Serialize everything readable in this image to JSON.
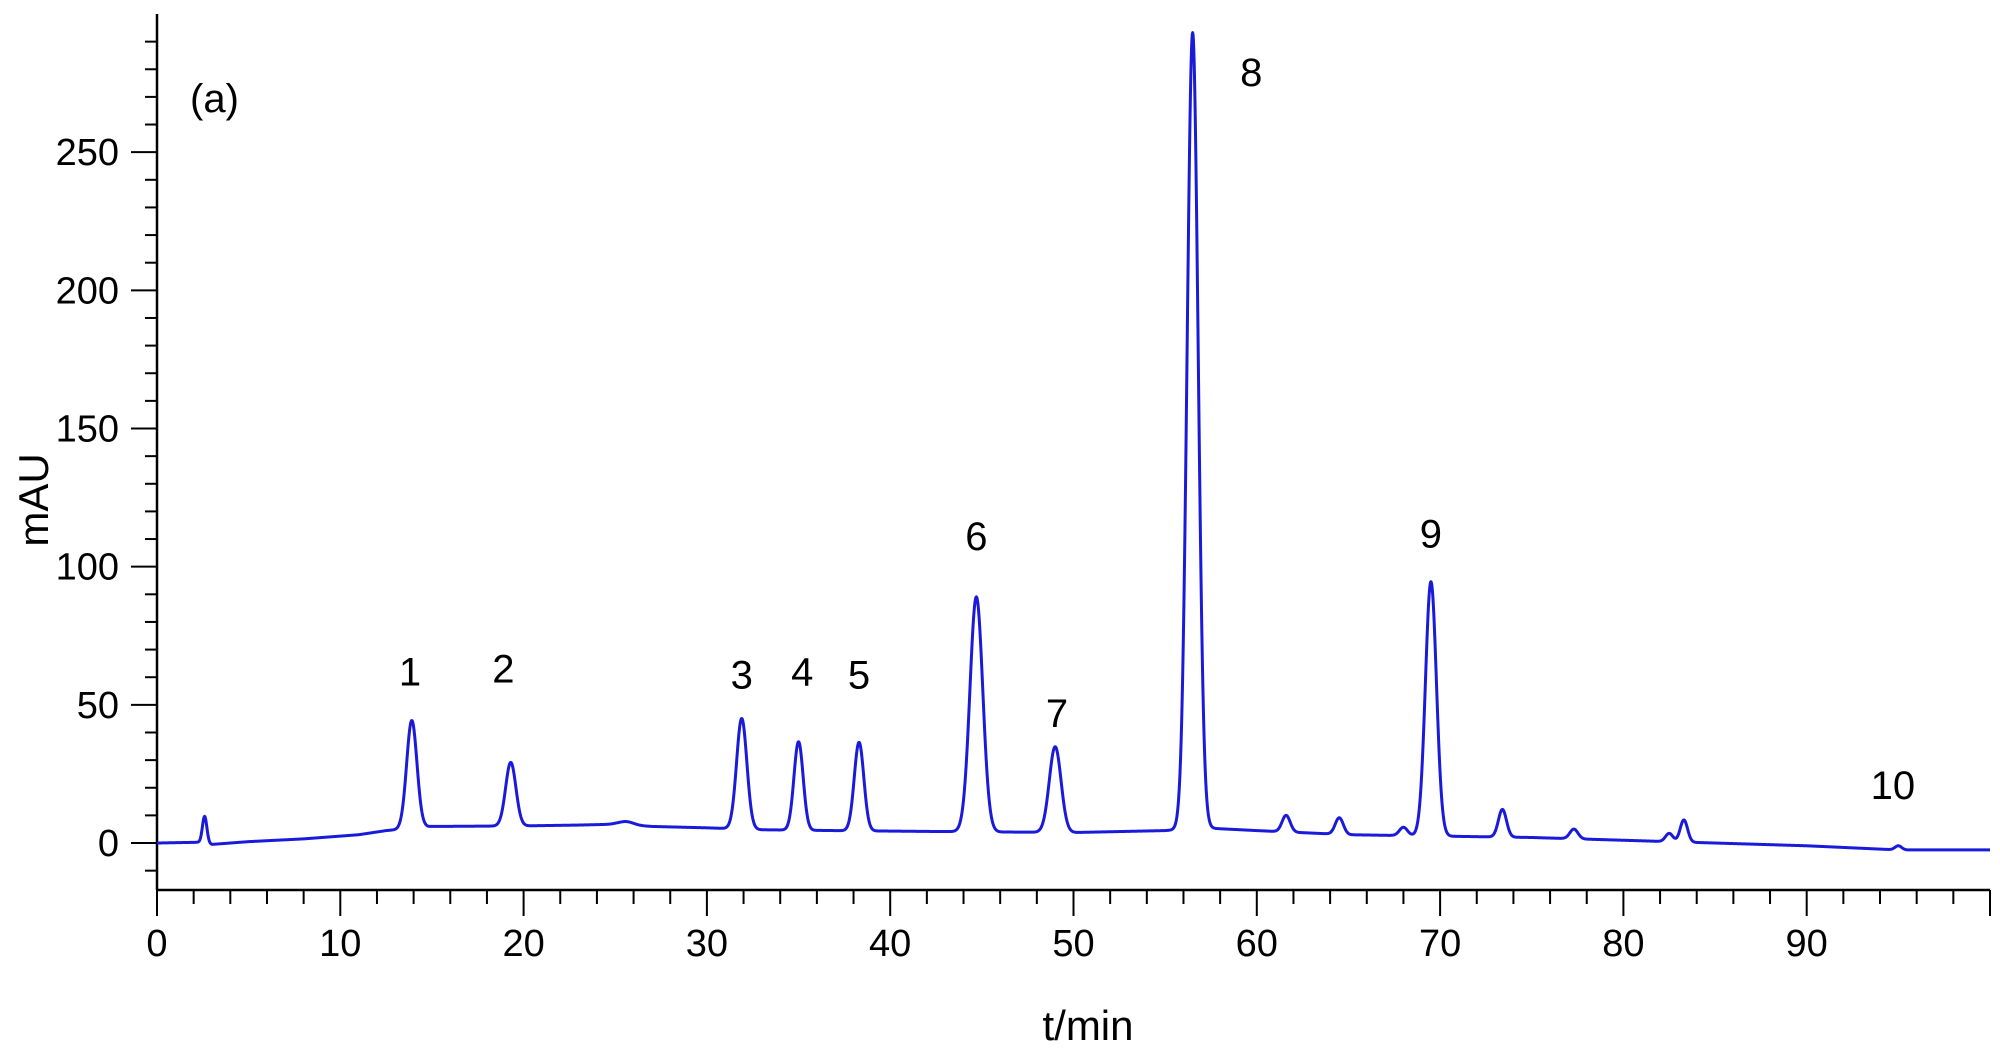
{
  "chart_data": {
    "type": "line",
    "panel_label": "(a)",
    "xlabel": "t/min",
    "ylabel": "mAU",
    "xlim": [
      0,
      100
    ],
    "ylim": [
      -17,
      300
    ],
    "x_ticks": [
      0,
      10,
      20,
      30,
      40,
      50,
      60,
      70,
      80,
      90
    ],
    "y_ticks": [
      0,
      50,
      100,
      150,
      200,
      250
    ],
    "line_color": "#1a1adb",
    "baseline": [
      [
        0,
        0
      ],
      [
        2.5,
        0.3
      ],
      [
        3,
        -0.5
      ],
      [
        5,
        0.5
      ],
      [
        8,
        1.5
      ],
      [
        11,
        3
      ],
      [
        12.5,
        4.5
      ],
      [
        15,
        6
      ],
      [
        20,
        6.2
      ],
      [
        23,
        6.5
      ],
      [
        25,
        6.8
      ],
      [
        27,
        6
      ],
      [
        30,
        5.5
      ],
      [
        33,
        4.8
      ],
      [
        37,
        4.5
      ],
      [
        42,
        4.2
      ],
      [
        46,
        4
      ],
      [
        50,
        3.8
      ],
      [
        55,
        4.5
      ],
      [
        57,
        5.5
      ],
      [
        60,
        4.5
      ],
      [
        65,
        3
      ],
      [
        70,
        2.5
      ],
      [
        75,
        2
      ],
      [
        80,
        1
      ],
      [
        85,
        0
      ],
      [
        90,
        -1
      ],
      [
        95,
        -2.5
      ],
      [
        100,
        -2.5
      ]
    ],
    "peaks": [
      {
        "label": "",
        "t": 2.6,
        "height": 9.5,
        "width": 0.12
      },
      {
        "label": "1",
        "t": 13.9,
        "height": 39,
        "width": 0.28
      },
      {
        "label": "2",
        "t": 19.3,
        "height": 23,
        "width": 0.28
      },
      {
        "label": "",
        "t": 25.6,
        "height": 1.2,
        "width": 0.4
      },
      {
        "label": "3",
        "t": 31.9,
        "height": 40,
        "width": 0.28
      },
      {
        "label": "4",
        "t": 35.0,
        "height": 32,
        "width": 0.25
      },
      {
        "label": "5",
        "t": 38.3,
        "height": 32,
        "width": 0.26
      },
      {
        "label": "6",
        "t": 44.7,
        "height": 85,
        "width": 0.35
      },
      {
        "label": "7",
        "t": 49.0,
        "height": 31,
        "width": 0.32
      },
      {
        "label": "8",
        "t": 56.5,
        "height": 288,
        "width": 0.3
      },
      {
        "label": "",
        "t": 61.6,
        "height": 6,
        "width": 0.22
      },
      {
        "label": "",
        "t": 64.5,
        "height": 6,
        "width": 0.22
      },
      {
        "label": "",
        "t": 68.0,
        "height": 3,
        "width": 0.22
      },
      {
        "label": "9",
        "t": 69.5,
        "height": 92,
        "width": 0.3
      },
      {
        "label": "",
        "t": 73.4,
        "height": 10,
        "width": 0.22
      },
      {
        "label": "",
        "t": 77.3,
        "height": 3.5,
        "width": 0.22
      },
      {
        "label": "",
        "t": 82.5,
        "height": 3,
        "width": 0.2
      },
      {
        "label": "",
        "t": 83.3,
        "height": 8,
        "width": 0.2
      },
      {
        "label": "10",
        "t": 95.0,
        "height": 1.5,
        "width": 0.18
      }
    ],
    "peak_labels": [
      {
        "text": "1",
        "t": 13.8,
        "y": 57
      },
      {
        "text": "2",
        "t": 18.9,
        "y": 58
      },
      {
        "text": "3",
        "t": 31.9,
        "y": 56
      },
      {
        "text": "4",
        "t": 35.2,
        "y": 57
      },
      {
        "text": "5",
        "t": 38.3,
        "y": 56
      },
      {
        "text": "6",
        "t": 44.7,
        "y": 106
      },
      {
        "text": "7",
        "t": 49.1,
        "y": 42
      },
      {
        "text": "8",
        "t": 59.7,
        "y": 274
      },
      {
        "text": "9",
        "t": 69.5,
        "y": 107
      },
      {
        "text": "10",
        "t": 94.7,
        "y": 16
      }
    ]
  }
}
